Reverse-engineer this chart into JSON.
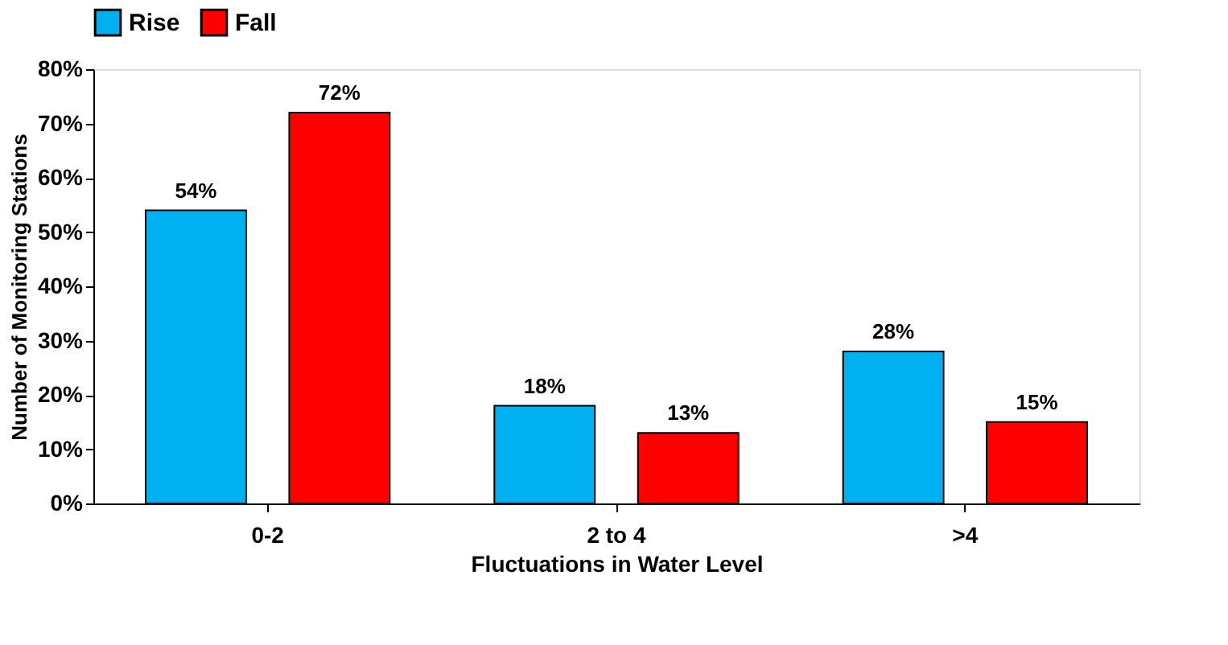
{
  "chart_data": {
    "type": "bar",
    "xlabel": "Fluctuations in Water Level",
    "ylabel": "Number of Monitoring Stations",
    "categories": [
      "0-2",
      "2 to 4",
      ">4"
    ],
    "series": [
      {
        "name": "Rise",
        "color": "#00b0f0",
        "values": [
          54,
          18,
          28
        ],
        "value_labels": [
          "54%",
          "18%",
          "28%"
        ]
      },
      {
        "name": "Fall",
        "color": "#ff0000",
        "values": [
          72,
          13,
          15
        ],
        "value_labels": [
          "72%",
          "13%",
          "15%"
        ]
      }
    ],
    "ylim": [
      0,
      80
    ],
    "yticks": [
      {
        "value": 0,
        "label": "0%"
      },
      {
        "value": 10,
        "label": "10%"
      },
      {
        "value": 20,
        "label": "20%"
      },
      {
        "value": 30,
        "label": "30%"
      },
      {
        "value": 40,
        "label": "40%"
      },
      {
        "value": 50,
        "label": "50%"
      },
      {
        "value": 60,
        "label": "60%"
      },
      {
        "value": 70,
        "label": "70%"
      },
      {
        "value": 80,
        "label": "80%"
      }
    ],
    "grid": false,
    "legend": "top"
  }
}
